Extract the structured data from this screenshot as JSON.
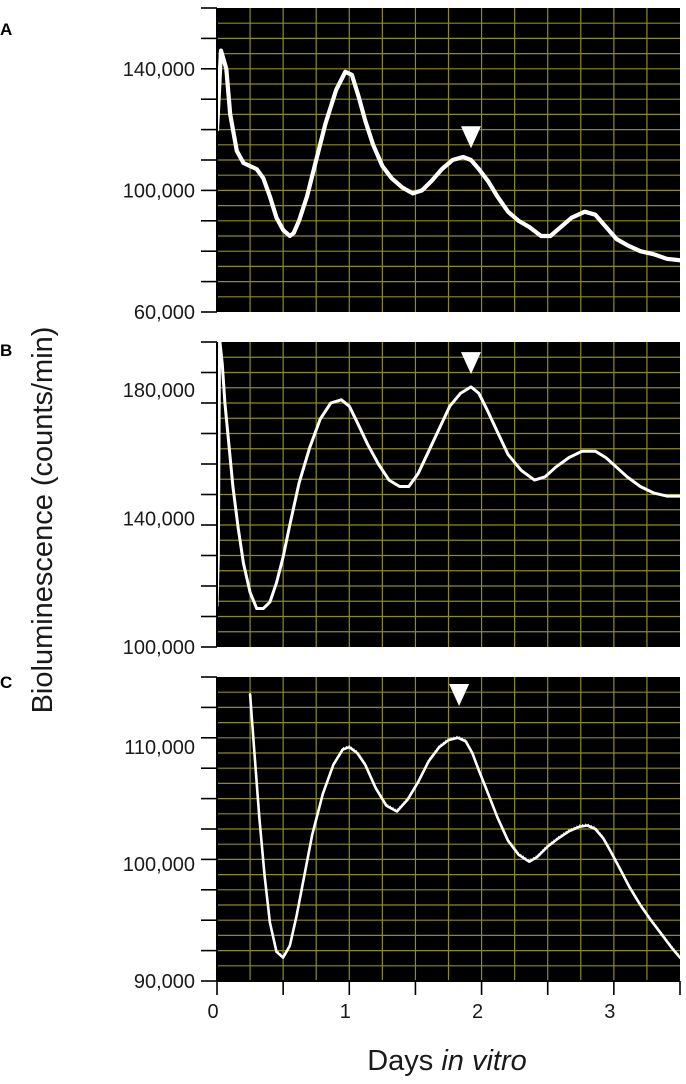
{
  "figure": {
    "ylabel": "Bioluminescence (counts/min)",
    "xlabel_prefix": "Days ",
    "xlabel_italic": "in vitro"
  },
  "colors": {
    "plot_background": "#000000",
    "grid": "#8c8c1e",
    "trace": "#ffffff",
    "marker": "#ffffff"
  },
  "chart_data": [
    {
      "panel": "A",
      "type": "line",
      "xlim": [
        0,
        3.5
      ],
      "ylim": [
        60000,
        160000
      ],
      "yticks": [
        {
          "value": 60000,
          "label": "60,000"
        },
        {
          "value": 100000,
          "label": "100,000"
        },
        {
          "value": 140000,
          "label": "140,000"
        }
      ],
      "grid": true,
      "trace_thickness": "thick",
      "arrowhead_at": {
        "x": 1.92,
        "y": 116500
      },
      "series": [
        {
          "x": [
            0.0,
            0.03,
            0.07,
            0.1,
            0.15,
            0.2,
            0.25,
            0.3,
            0.35,
            0.4,
            0.45,
            0.5,
            0.55,
            0.58,
            0.62,
            0.68,
            0.75,
            0.82,
            0.9,
            0.97,
            1.02,
            1.07,
            1.12,
            1.18,
            1.25,
            1.32,
            1.4,
            1.48,
            1.55,
            1.62,
            1.7,
            1.78,
            1.86,
            1.92,
            1.98,
            2.05,
            2.12,
            2.2,
            2.28,
            2.36,
            2.45,
            2.52,
            2.6,
            2.68,
            2.78,
            2.86,
            2.94,
            3.02,
            3.1,
            3.2,
            3.3,
            3.4,
            3.5
          ],
          "y": [
            120000,
            146000,
            140000,
            125000,
            113000,
            109000,
            108000,
            107000,
            104000,
            98000,
            91000,
            87000,
            85000,
            86000,
            90000,
            98000,
            110000,
            122000,
            133000,
            139000,
            138000,
            131000,
            123000,
            115000,
            108000,
            104000,
            101000,
            99000,
            100000,
            103000,
            107000,
            110000,
            111000,
            110000,
            107000,
            103000,
            98000,
            93000,
            90000,
            88000,
            85000,
            85000,
            88000,
            91000,
            93000,
            92000,
            88000,
            84000,
            82000,
            80000,
            79000,
            77500,
            77000
          ]
        }
      ]
    },
    {
      "panel": "B",
      "type": "line",
      "xlim": [
        0,
        3.5
      ],
      "ylim": [
        100000,
        195000
      ],
      "yticks": [
        {
          "value": 100000,
          "label": "100,000"
        },
        {
          "value": 140000,
          "label": "140,000"
        },
        {
          "value": 180000,
          "label": "180,000"
        }
      ],
      "grid": true,
      "trace_thickness": "medium",
      "arrowhead_at": {
        "x": 1.92,
        "y": 187500
      },
      "series": [
        {
          "x": [
            0.0,
            0.01,
            0.02,
            0.04,
            0.06,
            0.09,
            0.12,
            0.16,
            0.2,
            0.25,
            0.3,
            0.35,
            0.4,
            0.45,
            0.5,
            0.55,
            0.62,
            0.7,
            0.78,
            0.86,
            0.94,
            1.0,
            1.06,
            1.14,
            1.22,
            1.3,
            1.38,
            1.45,
            1.52,
            1.6,
            1.68,
            1.76,
            1.84,
            1.92,
            1.98,
            2.04,
            2.12,
            2.2,
            2.3,
            2.4,
            2.48,
            2.56,
            2.66,
            2.76,
            2.86,
            2.94,
            3.02,
            3.1,
            3.2,
            3.3,
            3.4,
            3.5
          ],
          "y": [
            113000,
            128000,
            196000,
            188000,
            176000,
            163000,
            150000,
            137000,
            126000,
            117000,
            112000,
            112000,
            114000,
            120000,
            128000,
            138000,
            151000,
            162000,
            171000,
            176000,
            177000,
            175000,
            170000,
            163000,
            157000,
            152000,
            150000,
            150000,
            154000,
            161000,
            168000,
            175000,
            179000,
            181000,
            179000,
            174000,
            167000,
            160000,
            155000,
            152000,
            153000,
            156000,
            159000,
            161000,
            161000,
            159000,
            156000,
            153000,
            150000,
            148000,
            147000,
            147000
          ]
        }
      ]
    },
    {
      "panel": "C",
      "type": "line",
      "xlim": [
        0,
        3.5
      ],
      "ylim": [
        90000,
        116000
      ],
      "yticks": [
        {
          "value": 90000,
          "label": "90,000"
        },
        {
          "value": 100000,
          "label": "100,000"
        },
        {
          "value": 110000,
          "label": "110,000"
        }
      ],
      "grid": true,
      "trace_thickness": "noisy",
      "arrowhead_at": {
        "x": 1.83,
        "y": 114200
      },
      "series": [
        {
          "x": [
            0.25,
            0.28,
            0.32,
            0.36,
            0.4,
            0.45,
            0.5,
            0.55,
            0.6,
            0.66,
            0.72,
            0.8,
            0.88,
            0.95,
            1.0,
            1.06,
            1.12,
            1.2,
            1.28,
            1.36,
            1.44,
            1.52,
            1.6,
            1.68,
            1.75,
            1.82,
            1.88,
            1.93,
            1.98,
            2.05,
            2.12,
            2.2,
            2.28,
            2.36,
            2.42,
            2.5,
            2.58,
            2.66,
            2.74,
            2.8,
            2.86,
            2.92,
            2.98,
            3.05,
            3.12,
            3.2,
            3.28,
            3.36,
            3.44,
            3.5
          ],
          "y": [
            114500,
            110000,
            104000,
            99000,
            95000,
            92500,
            92000,
            93000,
            95500,
            99000,
            102500,
            106000,
            108500,
            109800,
            110000,
            109500,
            108500,
            106500,
            105000,
            104500,
            105500,
            107000,
            108800,
            110000,
            110600,
            110800,
            110500,
            109500,
            108000,
            106000,
            104000,
            102000,
            100800,
            100200,
            100600,
            101500,
            102200,
            102800,
            103200,
            103300,
            103000,
            102200,
            101000,
            99500,
            98000,
            96500,
            95200,
            94000,
            92800,
            92000
          ]
        }
      ]
    }
  ],
  "xaxis": {
    "ticks": [
      {
        "value": 0,
        "label": "0"
      },
      {
        "value": 1,
        "label": "1"
      },
      {
        "value": 2,
        "label": "2"
      },
      {
        "value": 3,
        "label": "3"
      }
    ]
  }
}
